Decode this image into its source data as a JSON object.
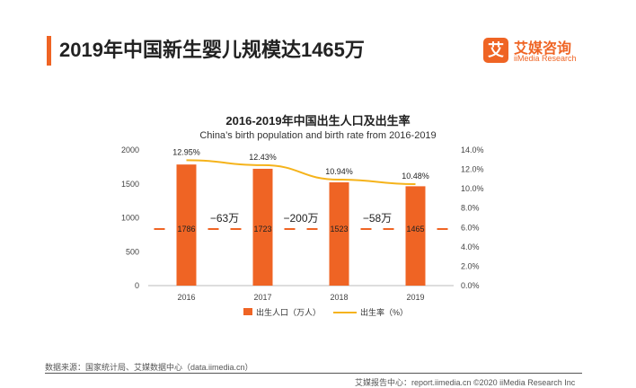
{
  "page": {
    "title": "2019年中国新生婴儿规模达1465万",
    "accent_color": "#ef6424",
    "logo": {
      "mark": "艾",
      "cn": "艾媒咨询",
      "en": "iiMedia Research"
    }
  },
  "chart_data": {
    "type": "bar",
    "title": "2016-2019年中国出生人口及出生率",
    "subtitle": "China’s birth population and birth rate from 2016-2019",
    "categories": [
      "2016",
      "2017",
      "2018",
      "2019"
    ],
    "series": [
      {
        "name": "出生人口（万人）",
        "type": "bar",
        "axis": "left",
        "color": "#ef6424",
        "values": [
          1786,
          1723,
          1523,
          1465
        ],
        "labels": [
          "1786",
          "1723",
          "1523",
          "1465"
        ]
      },
      {
        "name": "出生率（%）",
        "type": "line",
        "axis": "right",
        "color": "#f5b31b",
        "values": [
          12.95,
          12.43,
          10.94,
          10.48
        ],
        "labels": [
          "12.95%",
          "12.43%",
          "10.94%",
          "10.48%"
        ]
      }
    ],
    "y_left": {
      "min": 0,
      "max": 2000,
      "ticks": [
        "0",
        "500",
        "1000",
        "1500",
        "2000"
      ]
    },
    "y_right": {
      "min": 0,
      "max": 14,
      "ticks": [
        "0.0%",
        "2.0%",
        "4.0%",
        "6.0%",
        "8.0%",
        "10.0%",
        "12.0%",
        "14.0%"
      ]
    },
    "annotations": [
      "−63万",
      "−200万",
      "−58万"
    ],
    "grid": false,
    "legend_position": "bottom"
  },
  "footer": {
    "source": "数据来源：国家统计局、艾媒数据中心（data.iimedia.cn）",
    "report": "艾媒报告中心：report.iimedia.cn  ©2020  iiMedia Research  Inc"
  }
}
